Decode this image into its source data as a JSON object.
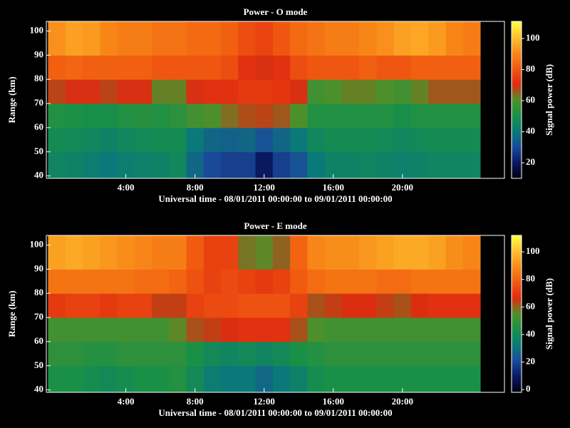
{
  "chart_data": [
    {
      "type": "heatmap",
      "title": "Power - O mode",
      "xlabel": "Universal time - 08/01/2011 00:00:00 to 09/01/2011 00:00:00",
      "ylabel": "Range (km)",
      "colorbar_label": "Signal power (dB)",
      "xlim": [
        -0.6,
        25.9
      ],
      "ylim": [
        39,
        104
      ],
      "xticks": [
        {
          "value": 4,
          "label": "4:00"
        },
        {
          "value": 8,
          "label": "8:00"
        },
        {
          "value": 12,
          "label": "12:00"
        },
        {
          "value": 16,
          "label": "16:00"
        },
        {
          "value": 20,
          "label": "20:00"
        }
      ],
      "yticks": [
        40,
        50,
        60,
        70,
        80,
        90,
        100
      ],
      "clim": [
        10,
        111
      ],
      "cticks": [
        20,
        40,
        60,
        80,
        100
      ],
      "colorscale": [
        "#000010",
        "#0a1860",
        "#1a4a9a",
        "#0a7a78",
        "#189048",
        "#50902a",
        "#e02a10",
        "#f05a10",
        "#f88a18",
        "#ffc030",
        "#ffff40"
      ],
      "xbins": [
        -0.5,
        0.5,
        1.5,
        2.5,
        3.5,
        4.5,
        5.5,
        6.5,
        7.5,
        8.5,
        9.5,
        10.5,
        11.5,
        12.5,
        13.5,
        14.5,
        15.5,
        16.5,
        17.5,
        18.5,
        19.5,
        20.5,
        21.5,
        22.5,
        23.5,
        24.5
      ],
      "ybins": [
        39,
        50,
        60,
        70,
        80,
        90,
        104
      ],
      "z": [
        [
          45,
          44,
          42,
          40,
          42,
          43,
          44,
          46,
          36,
          30,
          28,
          28,
          20,
          28,
          32,
          40,
          44,
          44,
          45,
          44,
          43,
          44,
          45,
          45,
          45
        ],
        [
          48,
          47,
          46,
          44,
          46,
          47,
          48,
          48,
          40,
          36,
          35,
          36,
          32,
          36,
          40,
          46,
          48,
          48,
          48,
          47,
          46,
          47,
          48,
          48,
          48
        ],
        [
          52,
          51,
          50,
          50,
          52,
          53,
          52,
          54,
          58,
          60,
          64,
          67,
          68,
          66,
          60,
          52,
          52,
          52,
          52,
          52,
          50,
          52,
          52,
          52,
          52
        ],
        [
          68,
          70,
          70,
          68,
          70,
          70,
          62,
          62,
          70,
          72,
          72,
          74,
          74,
          73,
          70,
          58,
          60,
          62,
          62,
          60,
          58,
          62,
          66,
          66,
          66
        ],
        [
          82,
          83,
          82,
          82,
          82,
          82,
          80,
          80,
          80,
          80,
          78,
          72,
          70,
          72,
          78,
          80,
          80,
          80,
          82,
          80,
          80,
          82,
          82,
          82,
          82
        ],
        [
          92,
          95,
          94,
          90,
          88,
          88,
          86,
          86,
          84,
          84,
          82,
          78,
          76,
          80,
          84,
          86,
          88,
          88,
          90,
          92,
          95,
          96,
          94,
          90,
          88
        ]
      ]
    },
    {
      "type": "heatmap",
      "title": "Power - E mode",
      "xlabel": "Universal time - 08/01/2011 00:00:00 to 09/01/2011 00:00:00",
      "ylabel": "Range (km)",
      "colorbar_label": "Signal power (dB)",
      "xlim": [
        -0.6,
        25.9
      ],
      "ylim": [
        39,
        104
      ],
      "xticks": [
        {
          "value": 4,
          "label": "4:00"
        },
        {
          "value": 8,
          "label": "8:00"
        },
        {
          "value": 12,
          "label": "12:00"
        },
        {
          "value": 16,
          "label": "16:00"
        },
        {
          "value": 20,
          "label": "20:00"
        }
      ],
      "yticks": [
        40,
        50,
        60,
        70,
        80,
        90,
        100
      ],
      "clim": [
        -2,
        112
      ],
      "cticks": [
        0,
        20,
        40,
        60,
        80,
        100
      ],
      "colorscale": [
        "#000010",
        "#0a1860",
        "#1a4a9a",
        "#0a7a78",
        "#189048",
        "#50902a",
        "#e02a10",
        "#f05a10",
        "#f88a18",
        "#ffc030",
        "#ffff40"
      ],
      "xbins": [
        -0.5,
        0.5,
        1.5,
        2.5,
        3.5,
        4.5,
        5.5,
        6.5,
        7.5,
        8.5,
        9.5,
        10.5,
        11.5,
        12.5,
        13.5,
        14.5,
        15.5,
        16.5,
        17.5,
        18.5,
        19.5,
        20.5,
        21.5,
        22.5,
        23.5,
        24.5
      ],
      "ybins": [
        39,
        50,
        60,
        70,
        80,
        90,
        104
      ],
      "z": [
        [
          44,
          44,
          42,
          40,
          42,
          44,
          44,
          46,
          40,
          34,
          32,
          32,
          28,
          32,
          36,
          42,
          44,
          44,
          44,
          44,
          44,
          44,
          44,
          44,
          44
        ],
        [
          48,
          48,
          46,
          46,
          48,
          48,
          48,
          48,
          44,
          40,
          38,
          40,
          38,
          40,
          44,
          46,
          48,
          48,
          48,
          48,
          48,
          48,
          48,
          48,
          48
        ],
        [
          52,
          52,
          52,
          52,
          52,
          52,
          52,
          56,
          62,
          64,
          66,
          68,
          68,
          68,
          62,
          54,
          52,
          52,
          52,
          52,
          52,
          52,
          52,
          52,
          52
        ],
        [
          70,
          72,
          72,
          70,
          72,
          72,
          64,
          64,
          72,
          74,
          74,
          76,
          76,
          76,
          72,
          62,
          64,
          66,
          66,
          64,
          62,
          66,
          68,
          68,
          68
        ],
        [
          84,
          84,
          84,
          84,
          84,
          82,
          82,
          80,
          76,
          72,
          74,
          72,
          70,
          72,
          78,
          82,
          84,
          84,
          84,
          82,
          82,
          84,
          84,
          84,
          84
        ],
        [
          94,
          96,
          94,
          92,
          90,
          88,
          86,
          86,
          78,
          72,
          72,
          58,
          56,
          60,
          80,
          88,
          90,
          90,
          92,
          94,
          96,
          96,
          94,
          90,
          88
        ]
      ]
    }
  ]
}
